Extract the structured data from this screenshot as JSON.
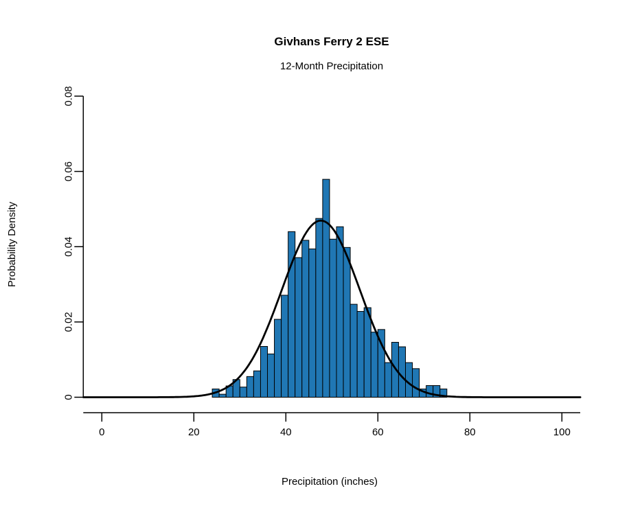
{
  "chart_data": {
    "type": "histogram",
    "title": "Givhans Ferry 2 ESE",
    "subtitle": "12-Month Precipitation",
    "xlabel": "Precipitation (inches)",
    "ylabel": "Probability Density",
    "xlim": [
      0,
      100
    ],
    "ylim": [
      0,
      0.08
    ],
    "x_ticks": [
      0,
      20,
      40,
      60,
      80,
      100
    ],
    "x_tick_labels": [
      "0",
      "20",
      "40",
      "60",
      "80",
      "100"
    ],
    "y_ticks": [
      0,
      0.02,
      0.04,
      0.06,
      0.08
    ],
    "y_tick_labels": [
      "0",
      "0.02",
      "0.04",
      "0.06",
      "0.08"
    ],
    "grid": false,
    "legend": "none",
    "bins_start": 24,
    "bin_width": 1.5,
    "densities": [
      0.0022,
      0.0008,
      0.003,
      0.0047,
      0.0027,
      0.0055,
      0.007,
      0.0135,
      0.0115,
      0.0207,
      0.0271,
      0.044,
      0.0371,
      0.0417,
      0.0394,
      0.0475,
      0.0579,
      0.042,
      0.0453,
      0.0398,
      0.0247,
      0.0228,
      0.0238,
      0.0173,
      0.018,
      0.0092,
      0.0146,
      0.0134,
      0.0092,
      0.0076,
      0.0022,
      0.0031,
      0.0031,
      0.0022
    ],
    "bar_color": "#2077b4",
    "bar_edge_color": "#000000",
    "curve": {
      "type": "normal-density",
      "mean": 47.6,
      "sd": 8.5,
      "color": "#000000"
    }
  }
}
